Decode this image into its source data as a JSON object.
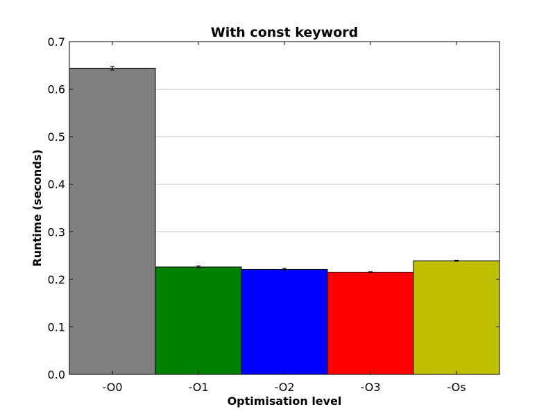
{
  "chart_data": {
    "type": "bar",
    "title": "With const keyword",
    "xlabel": "Optimisation level",
    "ylabel": "Runtime (seconds)",
    "categories": [
      "-O0",
      "-O1",
      "-O2",
      "-O3",
      "-Os"
    ],
    "values": [
      0.644,
      0.226,
      0.221,
      0.215,
      0.239
    ],
    "errors": [
      0.004,
      0.002,
      0.002,
      0.001,
      0.001
    ],
    "colors": [
      "#808080",
      "#008000",
      "#0000ff",
      "#ff0000",
      "#bfbf00"
    ],
    "ylim": [
      0,
      0.7
    ],
    "yticks": [
      "0.0",
      "0.1",
      "0.2",
      "0.3",
      "0.4",
      "0.5",
      "0.6",
      "0.7"
    ],
    "grid": "horizontal"
  }
}
